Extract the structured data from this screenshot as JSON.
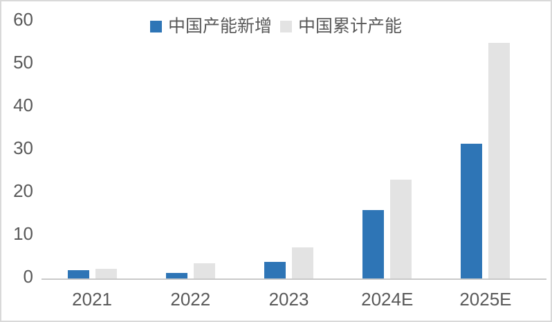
{
  "chart_data": {
    "type": "bar",
    "title": "",
    "xlabel": "",
    "ylabel": "",
    "categories": [
      "2021",
      "2022",
      "2023",
      "2024E",
      "2025E"
    ],
    "series": [
      {
        "name": "中国产能新增",
        "color": "#2e75b6",
        "values": [
          2,
          1.3,
          3.8,
          16,
          31.5
        ]
      },
      {
        "name": "中国累计产能",
        "color": "#e3e3e3",
        "values": [
          2.3,
          3.5,
          7.3,
          23,
          55
        ]
      }
    ],
    "ylim": [
      0,
      60
    ],
    "yticks": [
      0,
      10,
      20,
      30,
      40,
      50,
      60
    ],
    "grid": false,
    "legend_position": "top-center"
  },
  "colors": {
    "background": "#ffffff",
    "frame_border": "#d9d9d9",
    "axis_line": "#c9c9c9",
    "tick_text": "#595959",
    "legend_text": "#595959",
    "series_new_capacity": "#2e75b6",
    "series_cumulative_capacity": "#e3e3e3"
  }
}
